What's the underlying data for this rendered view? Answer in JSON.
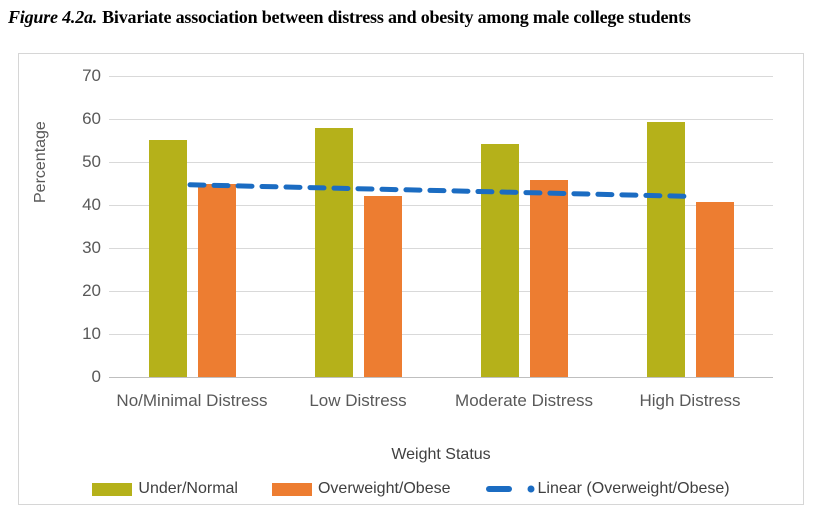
{
  "figure": {
    "label": "Figure 4.2a.",
    "title": "Bivariate association between distress and obesity among male college students"
  },
  "chart_data": {
    "type": "bar",
    "title": "Figure 4.2a. Bivariate association between distress and obesity among male college students",
    "categories": [
      "No/Minimal Distress",
      "Low Distress",
      "Moderate Distress",
      "High Distress"
    ],
    "series": [
      {
        "name": "Under/Normal",
        "color": "#b5b11a",
        "values": [
          55.2,
          57.9,
          54.2,
          59.4
        ]
      },
      {
        "name": "Overweight/Obese",
        "color": "#ed7d31",
        "values": [
          44.8,
          42.1,
          45.8,
          40.6
        ]
      }
    ],
    "trendline": {
      "name": "Linear (Overweight/Obese)",
      "color": "#1b6cc2",
      "style": "dashed",
      "start_value": 44.7,
      "end_value": 42.0
    },
    "xlabel": "Weight Status",
    "ylabel": "Percentage",
    "ylim": [
      0,
      70
    ],
    "yticks": [
      70,
      60,
      50,
      40,
      30,
      20,
      10,
      0
    ],
    "grid": true,
    "legend_position": "bottom",
    "colors": {
      "gridline": "#d9d9d9",
      "zero_axis": "#bfbfbf",
      "axis_text": "#595959",
      "chart_border": "#d6d6d6"
    }
  }
}
